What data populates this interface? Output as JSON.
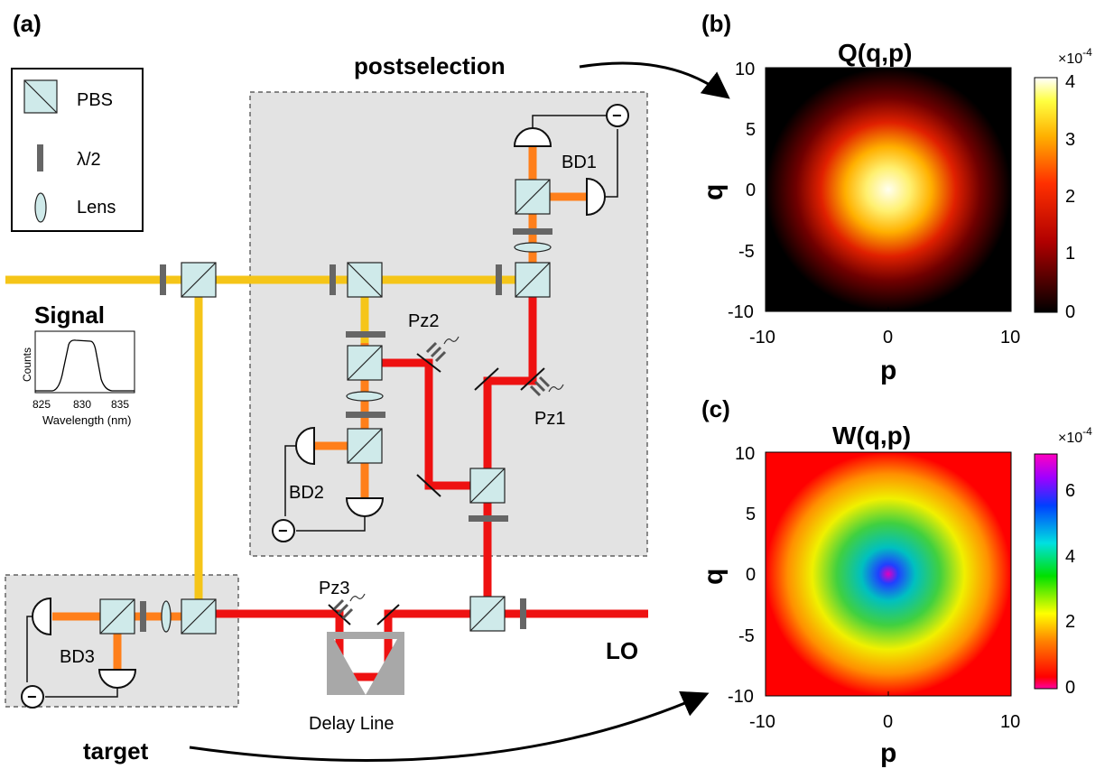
{
  "figure": {
    "panel_a": {
      "label": "(a)",
      "legend": {
        "pbs": "PBS",
        "waveplate": "λ/2",
        "lens": "Lens"
      },
      "signal_label": "Signal",
      "lo_label": "LO",
      "postselection_label": "postselection",
      "target_label": "target",
      "delay_line_label": "Delay Line",
      "detectors": {
        "bd1": "BD1",
        "bd2": "BD2",
        "bd3": "BD3"
      },
      "piezos": {
        "pz1": "Pz1",
        "pz2": "Pz2",
        "pz3": "Pz3"
      },
      "minus_symbol": "−",
      "spectrum_inset": {
        "ylabel": "Counts",
        "xlabel": "Wavelength (nm)",
        "xticks": [
          "825",
          "830",
          "835"
        ]
      }
    },
    "panel_b": {
      "label": "(b)",
      "title": "Q(q,p)",
      "xlabel": "p",
      "ylabel": "q",
      "xticks": [
        "-10",
        "0",
        "10"
      ],
      "yticks": [
        "10",
        "5",
        "0",
        "-5",
        "-10"
      ],
      "colorbar_exponent": "×10",
      "colorbar_power": "-4",
      "colorbar_ticks": [
        "4",
        "3",
        "2",
        "1",
        "0"
      ]
    },
    "panel_c": {
      "label": "(c)",
      "title": "W(q,p)",
      "xlabel": "p",
      "ylabel": "q",
      "xticks": [
        "-10",
        "0",
        "10"
      ],
      "yticks": [
        "10",
        "5",
        "0",
        "-5",
        "-10"
      ],
      "colorbar_exponent": "×10",
      "colorbar_power": "-4",
      "colorbar_ticks": [
        "6",
        "4",
        "2",
        "0"
      ]
    },
    "colors": {
      "signal_beam": "#f5c518",
      "lo_beam": "#ee1111",
      "detector_beam": "#ff7f1a",
      "pbs_fill": "#cfeaea",
      "box_fill": "#e3e3e3"
    }
  }
}
